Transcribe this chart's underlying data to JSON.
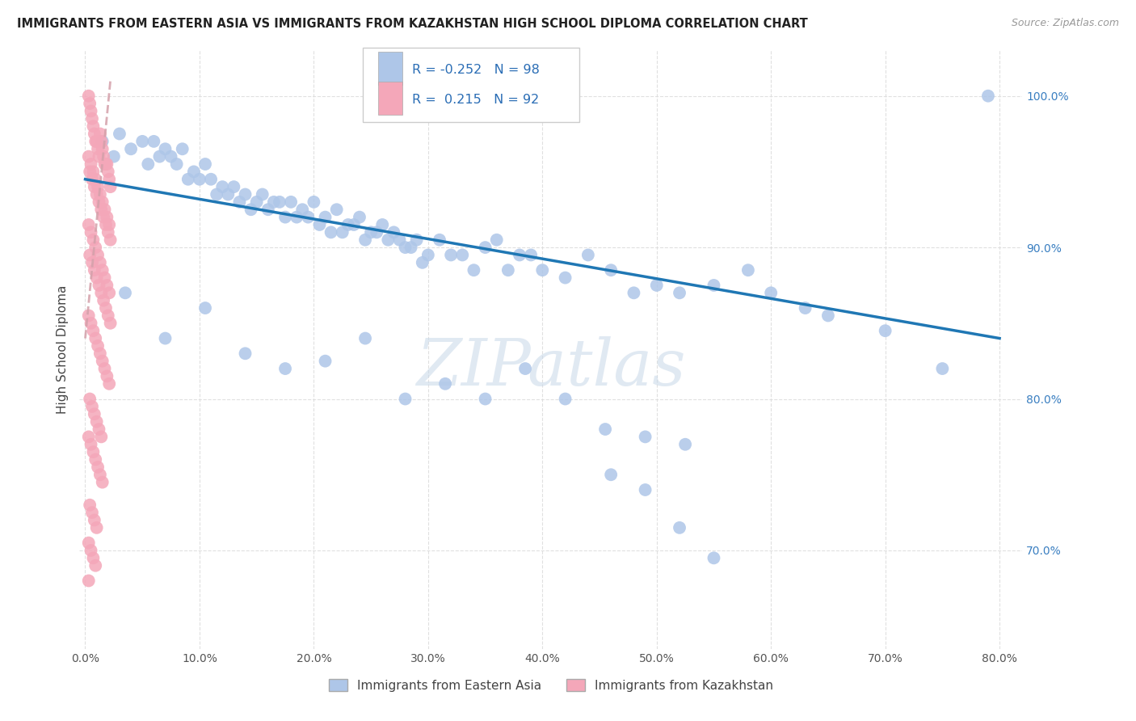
{
  "title": "IMMIGRANTS FROM EASTERN ASIA VS IMMIGRANTS FROM KAZAKHSTAN HIGH SCHOOL DIPLOMA CORRELATION CHART",
  "source": "Source: ZipAtlas.com",
  "ylabel": "High School Diploma",
  "legend_label1": "Immigrants from Eastern Asia",
  "legend_label2": "Immigrants from Kazakhstan",
  "corr_r1": "-0.252",
  "corr_n1": "98",
  "corr_r2": "0.215",
  "corr_n2": "92",
  "xlim": [
    -0.005,
    0.82
  ],
  "ylim": [
    0.635,
    1.03
  ],
  "xticks": [
    0.0,
    0.1,
    0.2,
    0.3,
    0.4,
    0.5,
    0.6,
    0.7,
    0.8
  ],
  "yticks": [
    0.7,
    0.8,
    0.9,
    1.0
  ],
  "color_blue": "#AEC6E8",
  "color_pink": "#F4A7B9",
  "trendline_blue": "#1F77B4",
  "trendline_pink": "#D4A0AA",
  "watermark_color": "#C8D8E8",
  "background_color": "#FFFFFF",
  "grid_color": "#DDDDDD",
  "blue_points_x": [
    0.015,
    0.025,
    0.03,
    0.04,
    0.05,
    0.055,
    0.06,
    0.065,
    0.07,
    0.075,
    0.08,
    0.085,
    0.09,
    0.095,
    0.1,
    0.105,
    0.11,
    0.115,
    0.12,
    0.125,
    0.13,
    0.135,
    0.14,
    0.145,
    0.15,
    0.155,
    0.16,
    0.165,
    0.17,
    0.175,
    0.18,
    0.185,
    0.19,
    0.195,
    0.2,
    0.205,
    0.21,
    0.215,
    0.22,
    0.225,
    0.23,
    0.235,
    0.24,
    0.245,
    0.25,
    0.255,
    0.26,
    0.265,
    0.27,
    0.275,
    0.28,
    0.285,
    0.29,
    0.295,
    0.3,
    0.31,
    0.32,
    0.33,
    0.34,
    0.35,
    0.36,
    0.37,
    0.38,
    0.39,
    0.4,
    0.42,
    0.44,
    0.46,
    0.48,
    0.5,
    0.52,
    0.55,
    0.58,
    0.6,
    0.63,
    0.65,
    0.7,
    0.75,
    0.79,
    0.035,
    0.07,
    0.105,
    0.14,
    0.175,
    0.21,
    0.245,
    0.28,
    0.315,
    0.35,
    0.385,
    0.42,
    0.455,
    0.49,
    0.525,
    0.46,
    0.49,
    0.52,
    0.55
  ],
  "blue_points_y": [
    0.97,
    0.96,
    0.975,
    0.965,
    0.97,
    0.955,
    0.97,
    0.96,
    0.965,
    0.96,
    0.955,
    0.965,
    0.945,
    0.95,
    0.945,
    0.955,
    0.945,
    0.935,
    0.94,
    0.935,
    0.94,
    0.93,
    0.935,
    0.925,
    0.93,
    0.935,
    0.925,
    0.93,
    0.93,
    0.92,
    0.93,
    0.92,
    0.925,
    0.92,
    0.93,
    0.915,
    0.92,
    0.91,
    0.925,
    0.91,
    0.915,
    0.915,
    0.92,
    0.905,
    0.91,
    0.91,
    0.915,
    0.905,
    0.91,
    0.905,
    0.9,
    0.9,
    0.905,
    0.89,
    0.895,
    0.905,
    0.895,
    0.895,
    0.885,
    0.9,
    0.905,
    0.885,
    0.895,
    0.895,
    0.885,
    0.88,
    0.895,
    0.885,
    0.87,
    0.875,
    0.87,
    0.875,
    0.885,
    0.87,
    0.86,
    0.855,
    0.845,
    0.82,
    1.0,
    0.87,
    0.84,
    0.86,
    0.83,
    0.82,
    0.825,
    0.84,
    0.8,
    0.81,
    0.8,
    0.82,
    0.8,
    0.78,
    0.775,
    0.77,
    0.75,
    0.74,
    0.715,
    0.695
  ],
  "pink_points_x": [
    0.003,
    0.004,
    0.005,
    0.006,
    0.007,
    0.008,
    0.009,
    0.01,
    0.011,
    0.012,
    0.013,
    0.014,
    0.015,
    0.016,
    0.017,
    0.018,
    0.019,
    0.02,
    0.021,
    0.022,
    0.003,
    0.005,
    0.007,
    0.009,
    0.011,
    0.013,
    0.015,
    0.017,
    0.019,
    0.021,
    0.004,
    0.006,
    0.008,
    0.01,
    0.012,
    0.014,
    0.016,
    0.018,
    0.02,
    0.022,
    0.003,
    0.005,
    0.007,
    0.009,
    0.011,
    0.013,
    0.015,
    0.017,
    0.019,
    0.021,
    0.004,
    0.006,
    0.008,
    0.01,
    0.012,
    0.014,
    0.016,
    0.018,
    0.02,
    0.022,
    0.003,
    0.005,
    0.007,
    0.009,
    0.011,
    0.013,
    0.015,
    0.017,
    0.019,
    0.021,
    0.004,
    0.006,
    0.008,
    0.01,
    0.012,
    0.014,
    0.003,
    0.005,
    0.007,
    0.009,
    0.011,
    0.013,
    0.015,
    0.004,
    0.006,
    0.008,
    0.01,
    0.003,
    0.005,
    0.007,
    0.009,
    0.003
  ],
  "pink_points_y": [
    1.0,
    0.995,
    0.99,
    0.985,
    0.98,
    0.975,
    0.97,
    0.97,
    0.965,
    0.96,
    0.975,
    0.97,
    0.965,
    0.96,
    0.955,
    0.955,
    0.955,
    0.95,
    0.945,
    0.94,
    0.96,
    0.955,
    0.95,
    0.945,
    0.94,
    0.935,
    0.93,
    0.925,
    0.92,
    0.915,
    0.95,
    0.945,
    0.94,
    0.935,
    0.93,
    0.925,
    0.92,
    0.915,
    0.91,
    0.905,
    0.915,
    0.91,
    0.905,
    0.9,
    0.895,
    0.89,
    0.885,
    0.88,
    0.875,
    0.87,
    0.895,
    0.89,
    0.885,
    0.88,
    0.875,
    0.87,
    0.865,
    0.86,
    0.855,
    0.85,
    0.855,
    0.85,
    0.845,
    0.84,
    0.835,
    0.83,
    0.825,
    0.82,
    0.815,
    0.81,
    0.8,
    0.795,
    0.79,
    0.785,
    0.78,
    0.775,
    0.775,
    0.77,
    0.765,
    0.76,
    0.755,
    0.75,
    0.745,
    0.73,
    0.725,
    0.72,
    0.715,
    0.705,
    0.7,
    0.695,
    0.69,
    0.68
  ]
}
